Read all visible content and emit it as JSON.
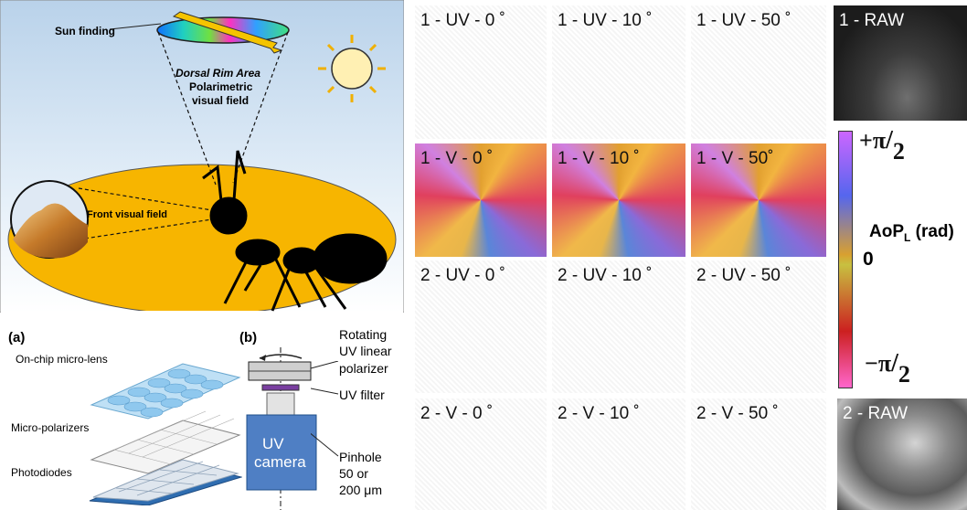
{
  "top_illustration": {
    "sun_finding": "Sun finding",
    "dorsal_rim_area": "Dorsal Rim Area",
    "polarimetric": "Polarimetric",
    "visual_field": "visual field",
    "front_visual_field": "Front visual field"
  },
  "panel_a": {
    "tag": "(a)",
    "layers": [
      "On-chip micro-lens",
      "Micro-polarizers",
      "Photodiodes"
    ]
  },
  "panel_b": {
    "tag": "(b)",
    "rotating_line1": "Rotating",
    "rotating_line2": "UV linear",
    "rotating_line3": "polarizer",
    "uv_filter": "UV filter",
    "camera_line1": "UV",
    "camera_line2": "camera",
    "pinhole_line1": "Pinhole",
    "pinhole_line2": "50 or",
    "pinhole_line3": "200 μm"
  },
  "grid": {
    "r1": [
      "1 - UV - 0 ˚",
      "1 - UV - 10 ˚",
      "1 - UV - 50 ˚",
      "1 - RAW"
    ],
    "r2": [
      "1 - V - 0 ˚",
      "1 - V - 10 ˚",
      "1 - V - 50˚"
    ],
    "r3": [
      "2 - UV - 0 ˚",
      "2 - UV - 10 ˚",
      "2 - UV - 50 ˚"
    ],
    "r4": [
      "2 - V - 0 ˚",
      "2 - V - 10 ˚",
      "2 - V - 50 ˚",
      "2 - RAW"
    ]
  },
  "colorbar": {
    "top": "+π",
    "top_den": "2",
    "mid_label": "AoP",
    "mid_sub": "L",
    "mid_unit": " (rad)",
    "zero": "0",
    "bottom": "−π",
    "bottom_den": "2"
  }
}
